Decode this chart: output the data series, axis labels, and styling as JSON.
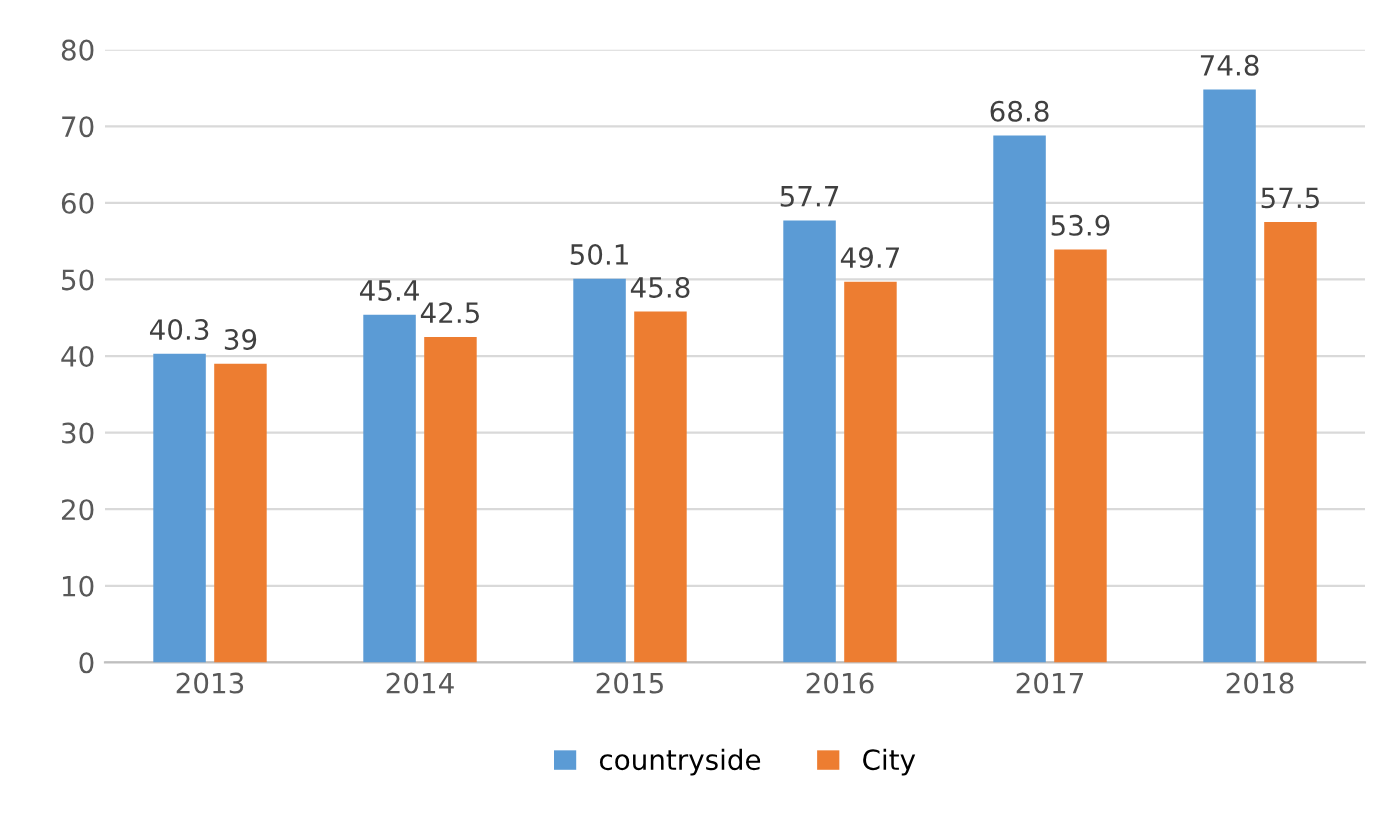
{
  "chart_data": {
    "type": "bar",
    "categories": [
      "2013",
      "2014",
      "2015",
      "2016",
      "2017",
      "2018"
    ],
    "series": [
      {
        "name": "countryside",
        "color": "#5b9bd5",
        "values": [
          40.3,
          45.4,
          50.1,
          57.7,
          68.8,
          74.8
        ]
      },
      {
        "name": "City",
        "color": "#ed7d31",
        "values": [
          39,
          42.5,
          45.8,
          49.7,
          53.9,
          57.5
        ]
      }
    ],
    "ylim": [
      0,
      80
    ],
    "yticks": [
      0,
      10,
      20,
      30,
      40,
      50,
      60,
      70,
      80
    ],
    "grid": "y",
    "legend": "bottom",
    "data_labels": true
  }
}
